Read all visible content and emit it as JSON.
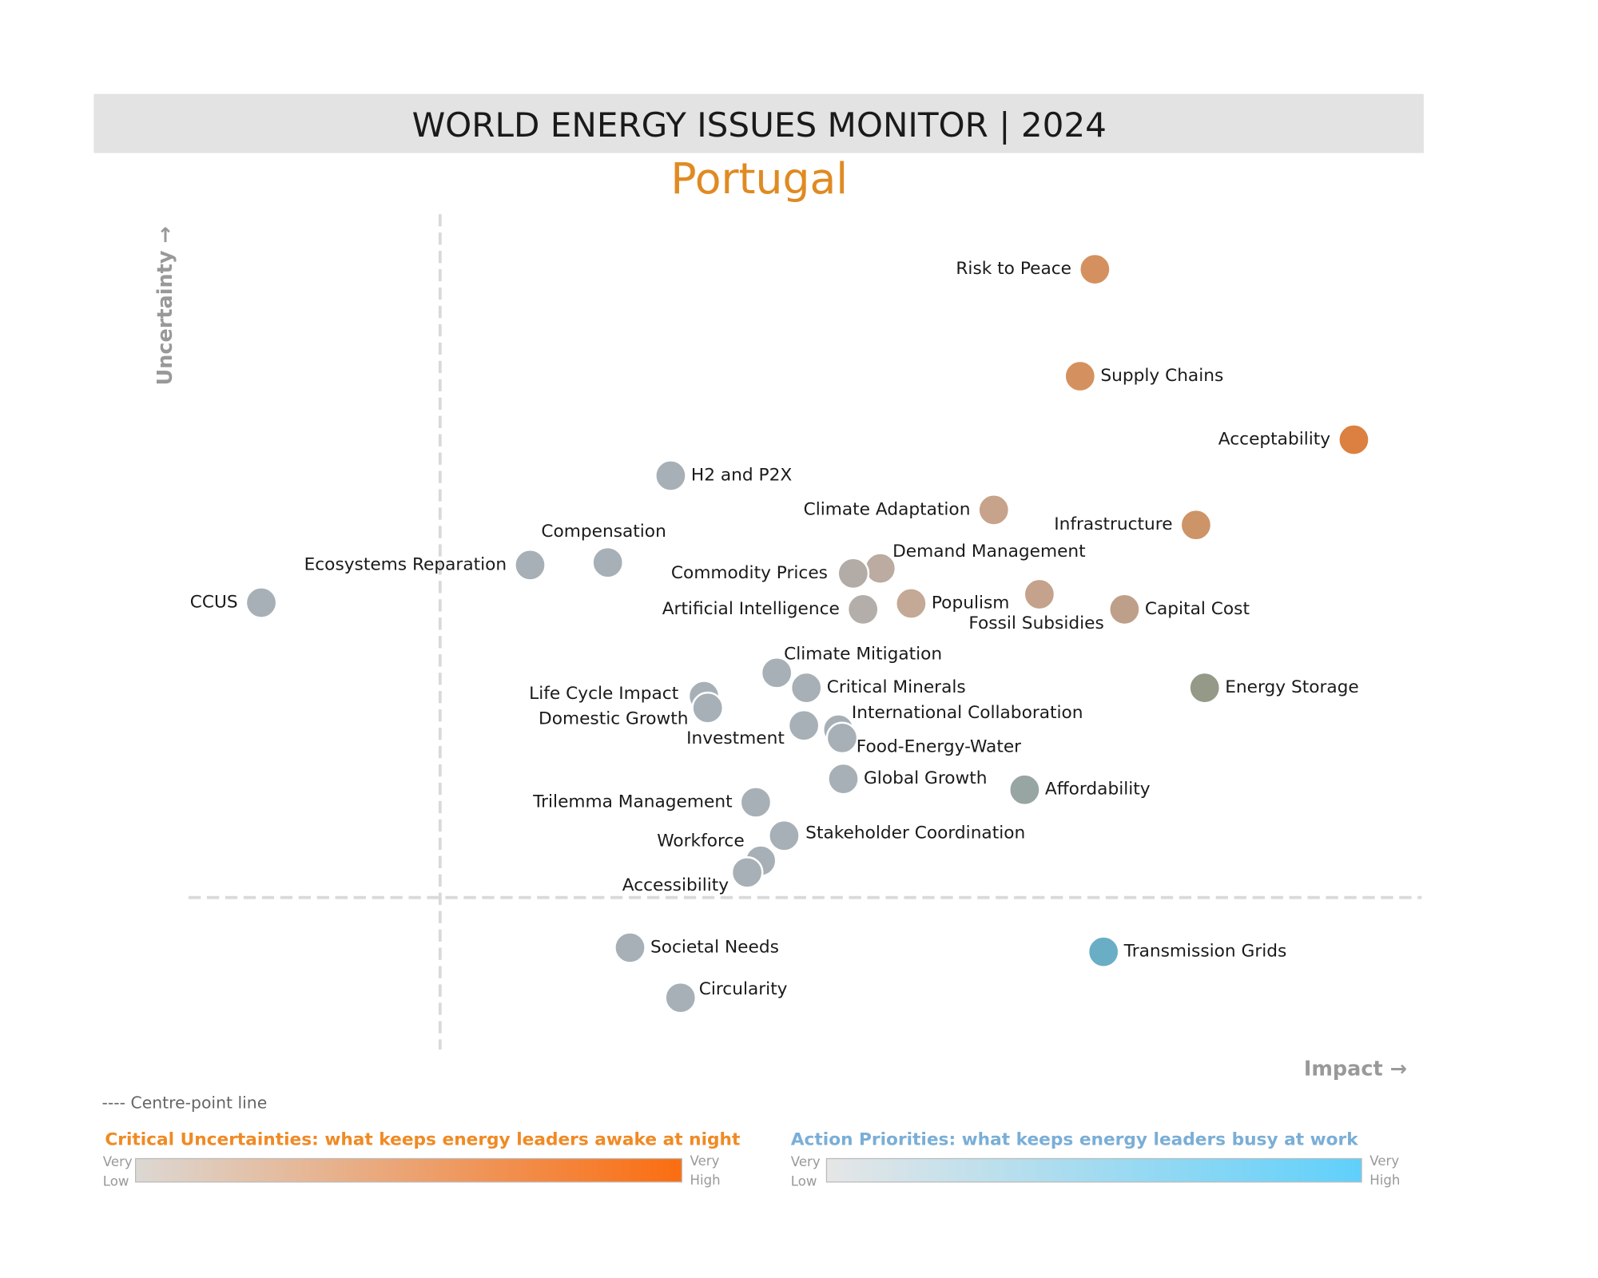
{
  "chart_data": {
    "type": "scatter",
    "title": "WORLD ENERGY ISSUES MONITOR | 2024",
    "subtitle": "Portugal",
    "x_label": "Impact →",
    "y_label": "Uncertainty →",
    "xlim": [
      0,
      100
    ],
    "ylim": [
      0,
      100
    ],
    "centre_x": 20.4,
    "centre_y": 18.2,
    "centre_line_label": "---- Centre-point line",
    "points": [
      {
        "name": "Risk to Peace",
        "x": 73.5,
        "y": 93.4,
        "color": "#d4915f"
      },
      {
        "name": "Supply Chains",
        "x": 72.3,
        "y": 80.6,
        "color": "#d4915f"
      },
      {
        "name": "Acceptability",
        "x": 94.5,
        "y": 73.0,
        "color": "#db8040"
      },
      {
        "name": "H2 and P2X",
        "x": 39.1,
        "y": 68.7,
        "color": "#a7b0b6"
      },
      {
        "name": "Climate Adaptation",
        "x": 65.3,
        "y": 64.6,
        "color": "#c6a38a"
      },
      {
        "name": "Infrastructure",
        "x": 81.7,
        "y": 62.8,
        "color": "#cd9468"
      },
      {
        "name": "Compensation",
        "x": 34.0,
        "y": 58.3,
        "color": "#a7b0b6"
      },
      {
        "name": "Ecosystems Reparation",
        "x": 27.7,
        "y": 58.0,
        "color": "#a7b0b6"
      },
      {
        "name": "Demand Management",
        "x": 56.1,
        "y": 57.6,
        "color": "#bbaba0"
      },
      {
        "name": "Commodity Prices",
        "x": 53.9,
        "y": 57.0,
        "color": "#b2aba6"
      },
      {
        "name": "CCUS",
        "x": 5.9,
        "y": 53.5,
        "color": "#a7b0b6"
      },
      {
        "name": "Fossil Subsidies",
        "x": 69.0,
        "y": 54.5,
        "color": "#c4a28b"
      },
      {
        "name": "Populism",
        "x": 58.6,
        "y": 53.4,
        "color": "#c4a996"
      },
      {
        "name": "Artificial Intelligence",
        "x": 54.7,
        "y": 52.7,
        "color": "#b3aea9"
      },
      {
        "name": "Capital Cost",
        "x": 75.9,
        "y": 52.7,
        "color": "#bea08a"
      },
      {
        "name": "Climate Mitigation",
        "x": 47.7,
        "y": 45.1,
        "color": "#a7b0b6"
      },
      {
        "name": "Critical Minerals",
        "x": 50.1,
        "y": 43.3,
        "color": "#a7b0b6"
      },
      {
        "name": "Energy Storage",
        "x": 82.4,
        "y": 43.3,
        "color": "#959a88"
      },
      {
        "name": "Life Cycle Impact",
        "x": 41.8,
        "y": 42.3,
        "color": "#a7b0b6"
      },
      {
        "name": "Domestic Growth",
        "x": 42.1,
        "y": 40.9,
        "color": "#a7b0b6"
      },
      {
        "name": "Investment",
        "x": 49.9,
        "y": 38.8,
        "color": "#a7b0b6"
      },
      {
        "name": "International Collaboration",
        "x": 52.7,
        "y": 38.3,
        "color": "#a7b0b6"
      },
      {
        "name": "Food-Energy-Water",
        "x": 53.0,
        "y": 37.3,
        "color": "#a7b0b6"
      },
      {
        "name": "Global Growth",
        "x": 53.1,
        "y": 32.4,
        "color": "#a7b0b6"
      },
      {
        "name": "Affordability",
        "x": 67.8,
        "y": 31.1,
        "color": "#97a5a3"
      },
      {
        "name": "Trilemma Management",
        "x": 46.0,
        "y": 29.6,
        "color": "#a7b0b6"
      },
      {
        "name": "Stakeholder Coordination",
        "x": 48.3,
        "y": 25.6,
        "color": "#a7b0b6"
      },
      {
        "name": "Workforce",
        "x": 46.4,
        "y": 22.6,
        "color": "#a7b0b6"
      },
      {
        "name": "Accessibility",
        "x": 45.3,
        "y": 21.2,
        "color": "#a7b0b6"
      },
      {
        "name": "Societal Needs",
        "x": 35.8,
        "y": 12.2,
        "color": "#a7b0b6"
      },
      {
        "name": "Transmission Grids",
        "x": 74.2,
        "y": 11.7,
        "color": "#6aaec6"
      },
      {
        "name": "Circularity",
        "x": 39.9,
        "y": 6.2,
        "color": "#a7b0b6"
      }
    ],
    "legends": [
      {
        "title": "Critical Uncertainties: what keeps energy leaders awake at night",
        "title_color": "#f08a24",
        "colors": [
          "#dcd8d3",
          "#fb6d10"
        ],
        "low": [
          "Very",
          "Low"
        ],
        "high": [
          "Very",
          "High"
        ]
      },
      {
        "title": "Action Priorities: what keeps energy leaders busy at work",
        "title_color": "#7aaed6",
        "colors": [
          "#e6e6e6",
          "#5fd0fb"
        ],
        "low": [
          "Very",
          "Low"
        ],
        "high": [
          "Very",
          "High"
        ]
      }
    ]
  }
}
